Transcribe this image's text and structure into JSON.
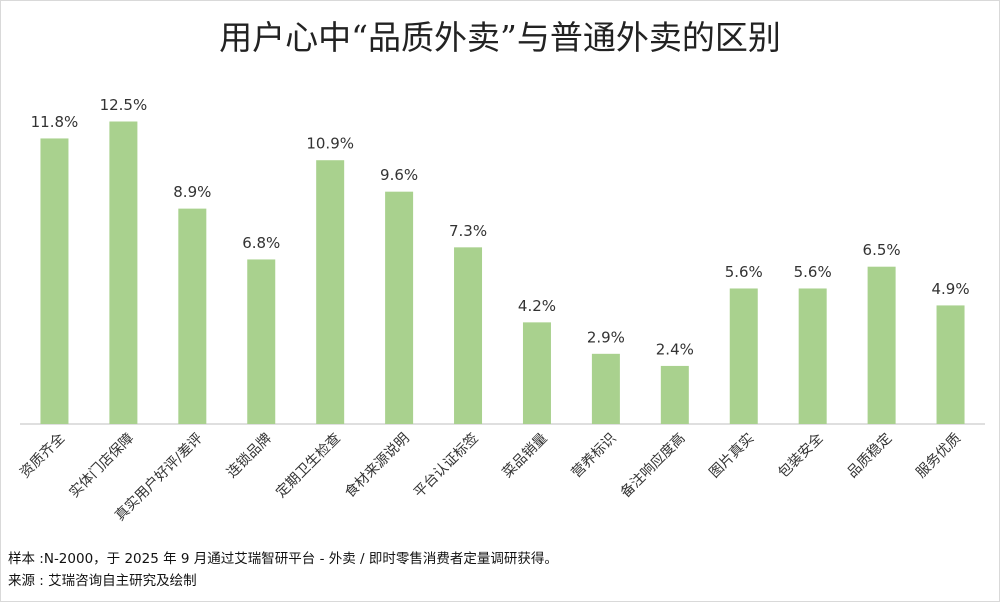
{
  "chart_data": {
    "type": "bar",
    "title": "用户心中“品质外卖”与普通外卖的区别",
    "categories": [
      "资质齐全",
      "实体门店保障",
      "真实用户好评/差评",
      "连锁品牌",
      "定期卫生检查",
      "食材来源说明",
      "平台认证标签",
      "菜品销量",
      "营养标识",
      "备注响应度高",
      "图片真实",
      "包装安全",
      "品质稳定",
      "服务优质"
    ],
    "values": [
      11.8,
      12.5,
      8.9,
      6.8,
      10.9,
      9.6,
      7.3,
      4.2,
      2.9,
      2.4,
      5.6,
      5.6,
      6.5,
      4.9
    ],
    "value_labels": [
      "11.8%",
      "12.5%",
      "8.9%",
      "6.8%",
      "10.9%",
      "9.6%",
      "7.3%",
      "4.2%",
      "2.9%",
      "2.4%",
      "5.6%",
      "5.6%",
      "6.5%",
      "4.9%"
    ],
    "color": "#a9d18e",
    "notes": [
      "样本 :N-2000，于 2025 年 9 月通过艾瑞智研平台 - 外卖 / 即时零售消费者定量调研获得。",
      "来源 : 艾瑞咨询自主研究及绘制"
    ]
  }
}
